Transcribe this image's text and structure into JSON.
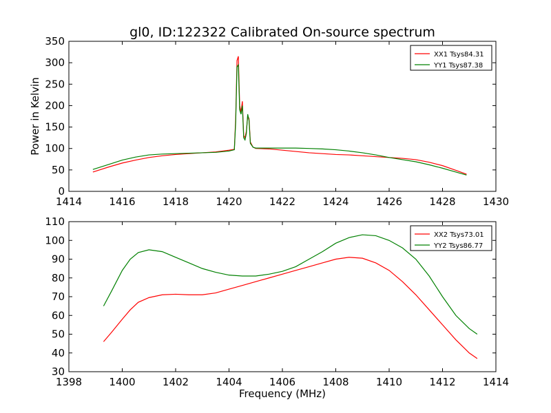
{
  "figure": {
    "title": "gl0, ID:122322 Calibrated On-source spectrum"
  },
  "chart_data": [
    {
      "type": "line",
      "ylabel": "Power in Kelvin",
      "xlabel": "",
      "xlim": [
        1414,
        1430
      ],
      "ylim": [
        0,
        350
      ],
      "xticks": [
        1414,
        1416,
        1418,
        1420,
        1422,
        1424,
        1426,
        1428,
        1430
      ],
      "yticks": [
        0,
        50,
        100,
        150,
        200,
        250,
        300,
        350
      ],
      "grid": false,
      "legend_position": "top-right",
      "series": [
        {
          "name": "XX1 Tsys84.31",
          "color": "#ff0000",
          "x": [
            1414.9,
            1415.5,
            1416.0,
            1416.5,
            1417.0,
            1417.5,
            1418.0,
            1418.5,
            1419.0,
            1419.5,
            1420.0,
            1420.2,
            1420.25,
            1420.3,
            1420.35,
            1420.4,
            1420.45,
            1420.5,
            1420.55,
            1420.6,
            1420.65,
            1420.7,
            1420.75,
            1420.8,
            1420.9,
            1421.0,
            1421.5,
            1422.0,
            1422.5,
            1423.0,
            1423.5,
            1424.0,
            1424.5,
            1425.0,
            1425.5,
            1426.0,
            1426.5,
            1427.0,
            1427.5,
            1428.0,
            1428.5,
            1428.9
          ],
          "values": [
            45,
            57,
            66,
            73,
            79,
            83,
            86,
            88,
            90,
            92,
            96,
            98,
            170,
            305,
            315,
            200,
            185,
            210,
            130,
            125,
            140,
            175,
            170,
            115,
            103,
            100,
            99,
            96,
            93,
            90,
            88,
            86,
            85,
            83,
            81,
            79,
            77,
            74,
            68,
            60,
            49,
            40
          ]
        },
        {
          "name": "YY1 Tsys87.38",
          "color": "#008000",
          "x": [
            1414.9,
            1415.5,
            1416.0,
            1416.5,
            1417.0,
            1417.5,
            1418.0,
            1418.5,
            1419.0,
            1419.5,
            1420.0,
            1420.2,
            1420.25,
            1420.3,
            1420.35,
            1420.4,
            1420.45,
            1420.5,
            1420.55,
            1420.6,
            1420.65,
            1420.7,
            1420.75,
            1420.8,
            1420.9,
            1421.0,
            1421.5,
            1422.0,
            1422.5,
            1423.0,
            1423.5,
            1424.0,
            1424.5,
            1425.0,
            1425.5,
            1426.0,
            1426.5,
            1427.0,
            1427.5,
            1428.0,
            1428.5,
            1428.9
          ],
          "values": [
            51,
            63,
            73,
            80,
            85,
            87,
            88,
            89,
            90,
            91,
            94,
            97,
            160,
            290,
            295,
            190,
            180,
            200,
            125,
            120,
            135,
            180,
            165,
            112,
            103,
            101,
            101,
            101,
            101,
            100,
            99,
            97,
            94,
            90,
            85,
            79,
            74,
            69,
            62,
            54,
            45,
            38
          ]
        }
      ]
    },
    {
      "type": "line",
      "ylabel": "",
      "xlabel": "Frequency (MHz)",
      "xlim": [
        1398,
        1414
      ],
      "ylim": [
        30,
        110
      ],
      "xticks": [
        1398,
        1400,
        1402,
        1404,
        1406,
        1408,
        1410,
        1412,
        1414
      ],
      "yticks": [
        30,
        40,
        50,
        60,
        70,
        80,
        90,
        100,
        110
      ],
      "grid": false,
      "legend_position": "top-right",
      "series": [
        {
          "name": "XX2 Tsys73.01",
          "color": "#ff0000",
          "x": [
            1399.3,
            1399.6,
            1400.0,
            1400.3,
            1400.6,
            1401.0,
            1401.5,
            1402.0,
            1402.5,
            1403.0,
            1403.5,
            1404.0,
            1404.5,
            1405.0,
            1405.5,
            1406.0,
            1406.5,
            1407.0,
            1407.5,
            1408.0,
            1408.5,
            1409.0,
            1409.5,
            1410.0,
            1410.5,
            1411.0,
            1411.5,
            1412.0,
            1412.5,
            1413.0,
            1413.3
          ],
          "values": [
            46,
            51,
            58,
            63,
            67,
            69.5,
            71,
            71.3,
            71,
            71,
            72,
            74,
            76,
            78,
            80,
            82,
            84,
            86,
            88,
            90,
            91,
            90.5,
            88,
            84,
            78,
            71,
            63,
            55,
            47,
            40,
            37
          ]
        },
        {
          "name": "YY2 Tsys86.77",
          "color": "#008000",
          "x": [
            1399.3,
            1399.6,
            1400.0,
            1400.3,
            1400.6,
            1401.0,
            1401.5,
            1402.0,
            1402.5,
            1403.0,
            1403.5,
            1404.0,
            1404.5,
            1405.0,
            1405.5,
            1406.0,
            1406.5,
            1407.0,
            1407.5,
            1408.0,
            1408.5,
            1409.0,
            1409.5,
            1410.0,
            1410.5,
            1411.0,
            1411.5,
            1412.0,
            1412.5,
            1413.0,
            1413.3
          ],
          "values": [
            65,
            73,
            84,
            90,
            93.5,
            95,
            94,
            91,
            88,
            85,
            83,
            81.5,
            81,
            81,
            82,
            83.5,
            86,
            90,
            94,
            98.5,
            101.5,
            103,
            102.5,
            100,
            96,
            90,
            81,
            70,
            60,
            53,
            50
          ]
        }
      ]
    }
  ]
}
